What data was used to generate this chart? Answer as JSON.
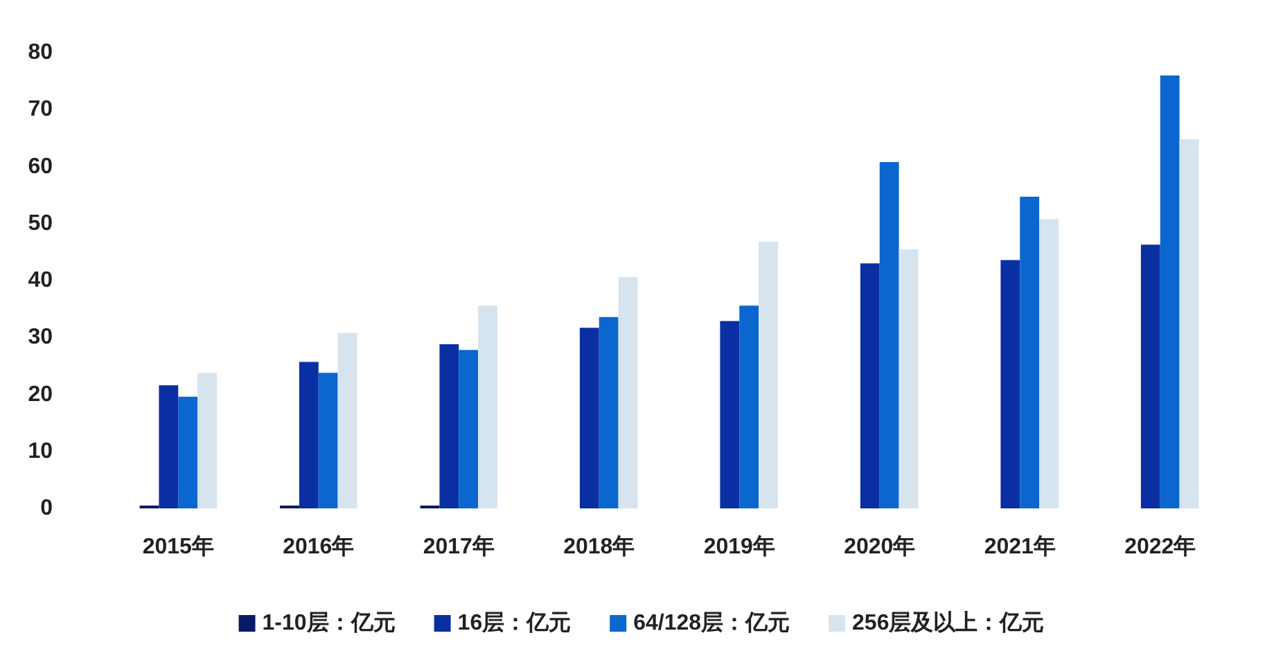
{
  "chart_data": {
    "type": "bar",
    "categories": [
      "2015年",
      "2016年",
      "2017年",
      "2018年",
      "2019年",
      "2020年",
      "2021年",
      "2022年"
    ],
    "series": [
      {
        "name": "1-10层：亿元",
        "color": "#0b1a66",
        "values": [
          0.5,
          0.5,
          0.5,
          null,
          null,
          null,
          null,
          null
        ]
      },
      {
        "name": "16层：亿元",
        "color": "#0a2fa3",
        "values": [
          21.6,
          25.7,
          28.8,
          31.7,
          32.9,
          43,
          43.6,
          46.3
        ]
      },
      {
        "name": "64/128层：亿元",
        "color": "#0b66cf",
        "values": [
          19.6,
          23.8,
          27.8,
          33.6,
          35.6,
          60.8,
          54.7,
          76
        ]
      },
      {
        "name": "256层及以上：亿元",
        "color": "#d6e4f0",
        "values": [
          23.8,
          30.8,
          35.6,
          40.6,
          46.8,
          45.5,
          50.8,
          64.8
        ]
      }
    ],
    "ylim": [
      0,
      80
    ],
    "yticks": [
      0,
      10,
      20,
      30,
      40,
      50,
      60,
      70,
      80
    ],
    "grid": false,
    "legend": "bottom"
  }
}
